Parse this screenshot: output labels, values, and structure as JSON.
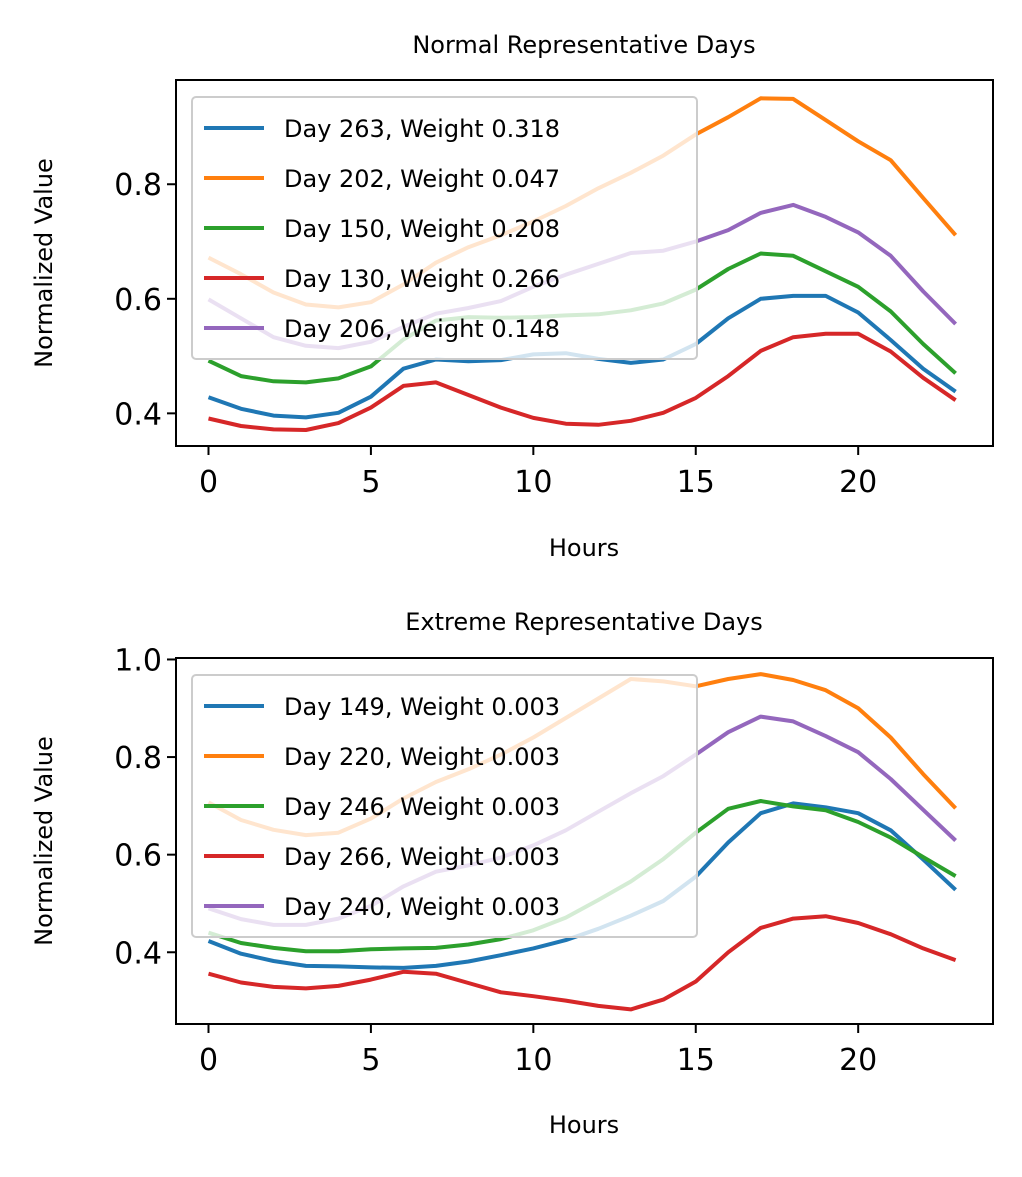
{
  "chart_data": [
    {
      "type": "line",
      "title": "Normal Representative Days",
      "xlabel": "Hours",
      "ylabel": "Normalized Value",
      "xlim": [
        -1,
        24.15
      ],
      "ylim": [
        0.343,
        0.982
      ],
      "xticks": [
        0,
        5,
        10,
        15,
        20
      ],
      "yticks": [
        0.4,
        0.6,
        0.8
      ],
      "grid": false,
      "legend_placement": "upper-left",
      "x": [
        0,
        1,
        2,
        3,
        4,
        5,
        6,
        7,
        8,
        9,
        10,
        11,
        12,
        13,
        14,
        15,
        16,
        17,
        18,
        19,
        20,
        21,
        22,
        23
      ],
      "series": [
        {
          "name": "Day 263, Weight 0.318",
          "color": "#1f77b4",
          "values": [
            0.428,
            0.408,
            0.396,
            0.393,
            0.401,
            0.429,
            0.478,
            0.494,
            0.491,
            0.493,
            0.503,
            0.505,
            0.495,
            0.488,
            0.494,
            0.521,
            0.566,
            0.6,
            0.605,
            0.605,
            0.576,
            0.528,
            0.478,
            0.438
          ]
        },
        {
          "name": "Day 202, Weight 0.047",
          "color": "#ff7f0e",
          "values": [
            0.672,
            0.643,
            0.611,
            0.59,
            0.585,
            0.594,
            0.625,
            0.663,
            0.69,
            0.711,
            0.735,
            0.762,
            0.793,
            0.82,
            0.85,
            0.887,
            0.917,
            0.95,
            0.949,
            0.912,
            0.875,
            0.842,
            0.776,
            0.711
          ]
        },
        {
          "name": "Day 150, Weight 0.208",
          "color": "#2ca02c",
          "values": [
            0.492,
            0.465,
            0.456,
            0.454,
            0.461,
            0.482,
            0.529,
            0.562,
            0.568,
            0.567,
            0.568,
            0.571,
            0.573,
            0.58,
            0.592,
            0.616,
            0.652,
            0.679,
            0.675,
            0.648,
            0.621,
            0.578,
            0.521,
            0.47
          ]
        },
        {
          "name": "Day 130, Weight 0.266",
          "color": "#d62728",
          "values": [
            0.391,
            0.378,
            0.372,
            0.371,
            0.383,
            0.41,
            0.448,
            0.454,
            0.432,
            0.41,
            0.392,
            0.382,
            0.38,
            0.387,
            0.401,
            0.427,
            0.465,
            0.509,
            0.533,
            0.539,
            0.539,
            0.508,
            0.462,
            0.423
          ]
        },
        {
          "name": "Day 206, Weight 0.148",
          "color": "#9467bd",
          "values": [
            0.599,
            0.566,
            0.533,
            0.518,
            0.514,
            0.525,
            0.551,
            0.574,
            0.584,
            0.596,
            0.621,
            0.642,
            0.661,
            0.68,
            0.684,
            0.7,
            0.72,
            0.75,
            0.764,
            0.743,
            0.716,
            0.675,
            0.613,
            0.556
          ]
        }
      ]
    },
    {
      "type": "line",
      "title": "Extreme Representative Days",
      "xlabel": "Hours",
      "ylabel": "Normalized Value",
      "xlim": [
        -1,
        24.15
      ],
      "ylim": [
        0.253,
        1.003
      ],
      "xticks": [
        0,
        5,
        10,
        15,
        20
      ],
      "yticks": [
        0.4,
        0.6,
        0.8,
        1.0
      ],
      "ytick_labels": [
        "0.4",
        "0.6",
        "0.8",
        "1.0"
      ],
      "grid": false,
      "legend_placement": "upper-left",
      "x": [
        0,
        1,
        2,
        3,
        4,
        5,
        6,
        7,
        8,
        9,
        10,
        11,
        12,
        13,
        14,
        15,
        16,
        17,
        18,
        19,
        20,
        21,
        22,
        23
      ],
      "series": [
        {
          "name": "Day 149, Weight 0.003",
          "color": "#1f77b4",
          "values": [
            0.423,
            0.397,
            0.382,
            0.372,
            0.371,
            0.369,
            0.368,
            0.372,
            0.381,
            0.394,
            0.408,
            0.425,
            0.448,
            0.475,
            0.505,
            0.555,
            0.625,
            0.685,
            0.705,
            0.697,
            0.685,
            0.65,
            0.59,
            0.528
          ]
        },
        {
          "name": "Day 220, Weight 0.003",
          "color": "#ff7f0e",
          "values": [
            0.707,
            0.671,
            0.651,
            0.64,
            0.645,
            0.674,
            0.715,
            0.749,
            0.775,
            0.805,
            0.84,
            0.88,
            0.92,
            0.96,
            0.955,
            0.945,
            0.96,
            0.97,
            0.958,
            0.937,
            0.9,
            0.84,
            0.765,
            0.695
          ]
        },
        {
          "name": "Day 246, Weight 0.003",
          "color": "#2ca02c",
          "values": [
            0.44,
            0.419,
            0.409,
            0.402,
            0.402,
            0.406,
            0.408,
            0.409,
            0.416,
            0.427,
            0.445,
            0.471,
            0.507,
            0.545,
            0.591,
            0.645,
            0.694,
            0.71,
            0.699,
            0.691,
            0.667,
            0.635,
            0.595,
            0.556
          ]
        },
        {
          "name": "Day 266, Weight 0.003",
          "color": "#d62728",
          "values": [
            0.356,
            0.338,
            0.329,
            0.326,
            0.331,
            0.344,
            0.36,
            0.356,
            0.337,
            0.318,
            0.31,
            0.301,
            0.29,
            0.283,
            0.303,
            0.34,
            0.4,
            0.45,
            0.469,
            0.474,
            0.46,
            0.437,
            0.408,
            0.384
          ]
        },
        {
          "name": "Day 240, Weight 0.003",
          "color": "#9467bd",
          "values": [
            0.49,
            0.468,
            0.456,
            0.456,
            0.469,
            0.495,
            0.535,
            0.565,
            0.578,
            0.594,
            0.619,
            0.65,
            0.688,
            0.726,
            0.761,
            0.805,
            0.851,
            0.883,
            0.873,
            0.843,
            0.81,
            0.755,
            0.692,
            0.629
          ]
        }
      ]
    }
  ]
}
